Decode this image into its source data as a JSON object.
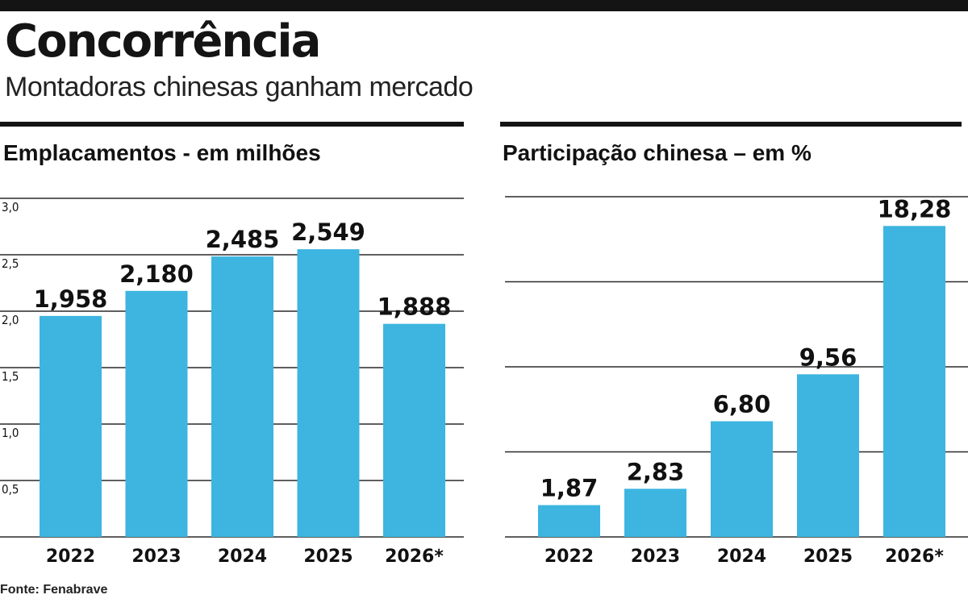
{
  "header": {
    "title": "Concorrência",
    "subtitle": "Montadoras chinesas ganham mercado"
  },
  "source": "Fonte: Fenabrave",
  "colors": {
    "bar": "#3db5e0",
    "rule": "#141414",
    "gridline": "#2a2a2a"
  },
  "chart_data": [
    {
      "type": "bar",
      "title": "Emplacamentos - em milhões",
      "categories": [
        "2022",
        "2023",
        "2024",
        "2025",
        "2026*"
      ],
      "values": [
        1.958,
        2.18,
        2.485,
        2.549,
        1.888
      ],
      "value_labels": [
        "1,958",
        "2,180",
        "2,485",
        "2,549",
        "1,888"
      ],
      "ylim": [
        0,
        3
      ],
      "yticks": [
        0.5,
        1.0,
        1.5,
        2.0,
        2.5,
        3.0
      ],
      "ytick_labels": [
        "0,5",
        "1,0",
        "1,5",
        "2,0",
        "2,5",
        "3,0"
      ],
      "grid": true
    },
    {
      "type": "bar",
      "title": "Participação chinesa – em %",
      "categories": [
        "2022",
        "2023",
        "2024",
        "2025",
        "2026*"
      ],
      "values": [
        1.87,
        2.83,
        6.8,
        9.56,
        18.28
      ],
      "value_labels": [
        "1,87",
        "2,83",
        "6,80",
        "9,56",
        "18,28"
      ],
      "ylim": [
        0,
        20
      ],
      "gridlines": [
        5,
        10,
        15,
        20
      ],
      "grid": true
    }
  ]
}
